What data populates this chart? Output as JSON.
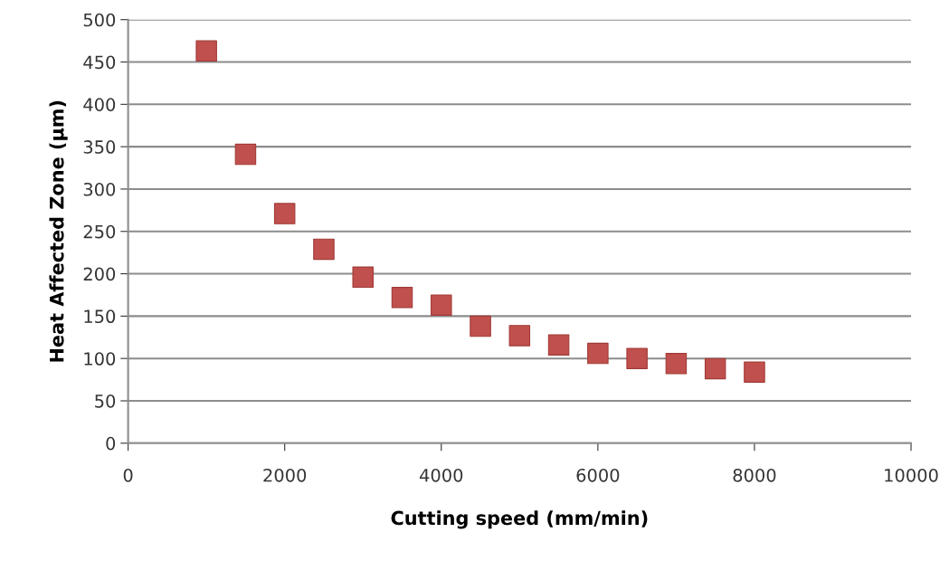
{
  "chart_data": {
    "type": "scatter",
    "xlabel": "Cutting speed (mm/min)",
    "ylabel": "Heat Affected Zone (µm)",
    "x": [
      1000,
      1500,
      2000,
      2500,
      3000,
      3500,
      4000,
      4500,
      5000,
      5500,
      6000,
      6500,
      7000,
      7500,
      8000
    ],
    "series": [
      {
        "color": "#c0504d",
        "values": [
          463,
          341,
          271,
          229,
          196,
          172,
          163,
          138,
          127,
          116,
          106,
          100,
          94,
          88,
          84
        ]
      }
    ],
    "xlim": [
      0,
      10000
    ],
    "xticks": [
      0,
      2000,
      4000,
      6000,
      8000,
      10000
    ],
    "ylim": [
      0,
      500
    ],
    "yticks": [
      0,
      50,
      100,
      150,
      200,
      250,
      300,
      350,
      400,
      450,
      500
    ],
    "grid": "y",
    "marker": "square",
    "legend": false
  }
}
